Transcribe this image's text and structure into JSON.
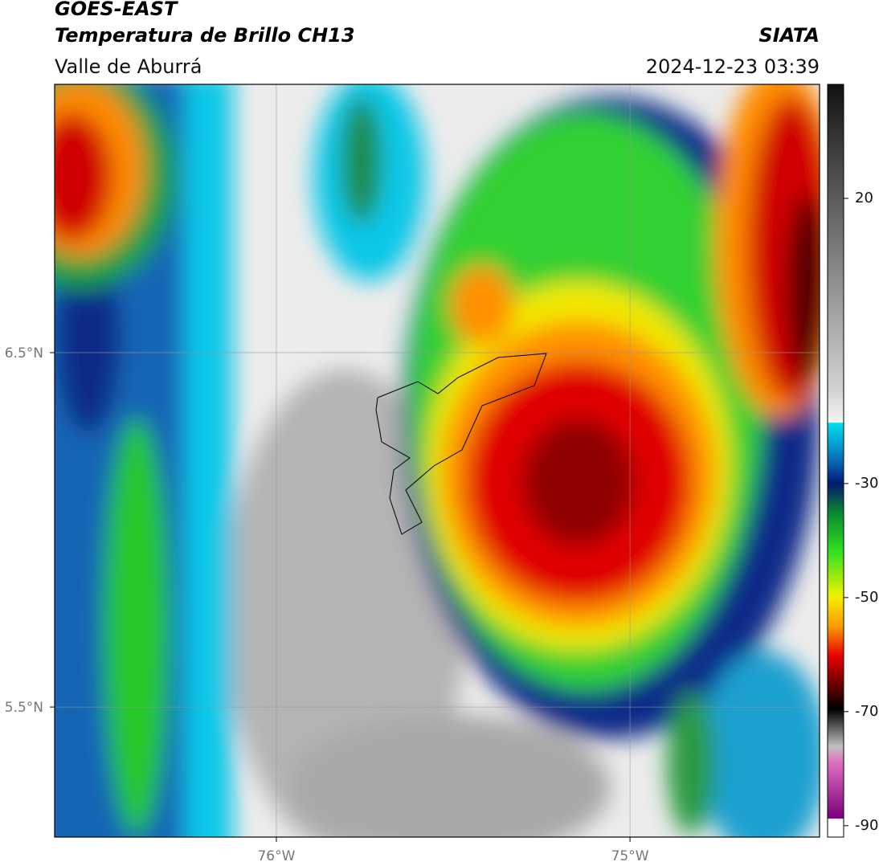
{
  "header": {
    "title": "GOES-EAST",
    "subtitle": "Temperatura de Brillo CH13",
    "region": "Valle de Aburrá",
    "source": "SIATA",
    "timestamp": "2024-12-23 03:39"
  },
  "map": {
    "xlim": [
      -76.627,
      -74.464
    ],
    "ylim": [
      5.133,
      7.257
    ],
    "xticks": [
      {
        "value": -76,
        "label": "76°W"
      },
      {
        "value": -75,
        "label": "75°W"
      }
    ],
    "yticks": [
      {
        "value": 6.5,
        "label": "6.5°N"
      },
      {
        "value": 5.5,
        "label": "5.5°N"
      }
    ],
    "grid": true
  },
  "colorbar": {
    "range": [
      -92,
      40
    ],
    "ticks": [
      20,
      -30,
      -50,
      -70,
      -90
    ]
  }
}
